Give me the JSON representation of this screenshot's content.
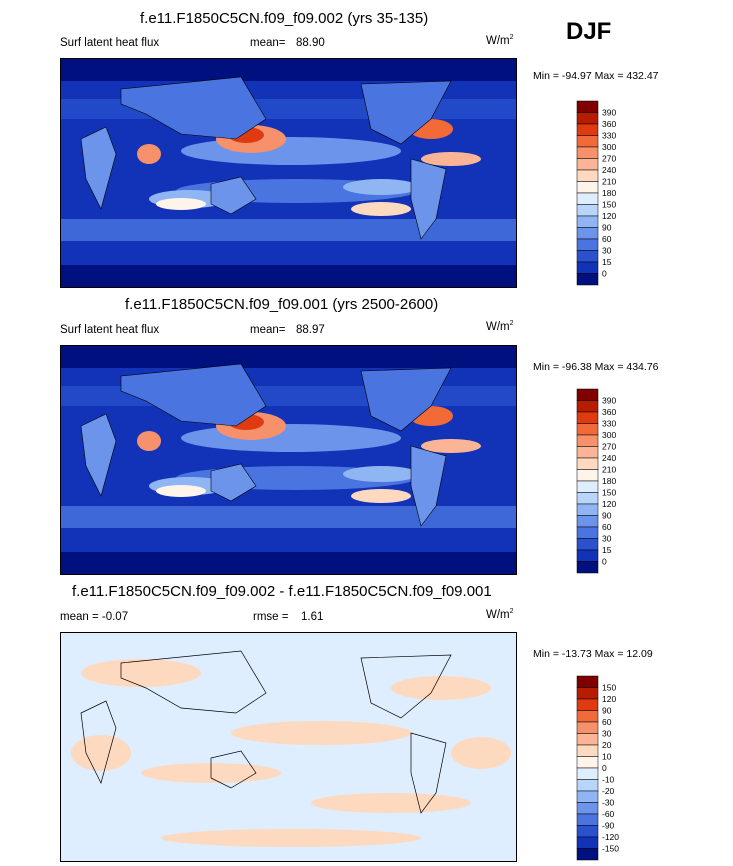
{
  "season": "DJF",
  "panels": [
    {
      "title": "f.e11.F1850C5CN.f09_f09.002 (yrs 35-135)",
      "left_label": "Surf latent heat flux",
      "stat_label": "mean=",
      "stat_value": "88.90",
      "units": "W/m",
      "units_exp": "2",
      "minmax": "Min = -94.97 Max = 432.47"
    },
    {
      "title": "f.e11.F1850C5CN.f09_f09.001 (yrs 2500-2600)",
      "left_label": "Surf latent heat flux",
      "stat_label": "mean=",
      "stat_value": "88.97",
      "units": "W/m",
      "units_exp": "2",
      "minmax": "Min = -96.38 Max = 434.76"
    },
    {
      "title": "f.e11.F1850C5CN.f09_f09.002 - f.e11.F1850C5CN.f09_f09.001",
      "left_label": "mean =  -0.07",
      "stat_label": "rmse =",
      "stat_value": "1.61",
      "units": "W/m",
      "units_exp": "2",
      "minmax": "Min = -13.73 Max =  12.09"
    }
  ],
  "chart_data": [
    {
      "type": "heatmap",
      "title": "f.e11.F1850C5CN.f09_f09.002 (yrs 35-135)",
      "variable": "Surf latent heat flux",
      "units": "W/m2",
      "mean": 88.9,
      "min": -94.97,
      "max": 432.47,
      "colorbar_labels": [
        "390",
        "360",
        "330",
        "300",
        "270",
        "240",
        "210",
        "180",
        "150",
        "120",
        "90",
        "60",
        "30",
        "15",
        "0"
      ],
      "colors": [
        "#800000",
        "#b71c00",
        "#e03a10",
        "#f26a38",
        "#f7916c",
        "#fbb596",
        "#fdd9c0",
        "#fff4ea",
        "#dfeefe",
        "#b8d6fb",
        "#8fb6f3",
        "#6b94ea",
        "#4a74e0",
        "#2a52cf",
        "#1232b8",
        "#00107e"
      ]
    },
    {
      "type": "heatmap",
      "title": "f.e11.F1850C5CN.f09_f09.001 (yrs 2500-2600)",
      "variable": "Surf latent heat flux",
      "units": "W/m2",
      "mean": 88.97,
      "min": -96.38,
      "max": 434.76,
      "colorbar_labels": [
        "390",
        "360",
        "330",
        "300",
        "270",
        "240",
        "210",
        "180",
        "150",
        "120",
        "90",
        "60",
        "30",
        "15",
        "0"
      ],
      "colors": [
        "#800000",
        "#b71c00",
        "#e03a10",
        "#f26a38",
        "#f7916c",
        "#fbb596",
        "#fdd9c0",
        "#fff4ea",
        "#dfeefe",
        "#b8d6fb",
        "#8fb6f3",
        "#6b94ea",
        "#4a74e0",
        "#2a52cf",
        "#1232b8",
        "#00107e"
      ]
    },
    {
      "type": "heatmap",
      "title": "f.e11.F1850C5CN.f09_f09.002 - f.e11.F1850C5CN.f09_f09.001",
      "units": "W/m2",
      "mean": -0.07,
      "rmse": 1.61,
      "min": -13.73,
      "max": 12.09,
      "colorbar_labels": [
        "150",
        "120",
        "90",
        "60",
        "30",
        "20",
        "10",
        "0",
        "-10",
        "-20",
        "-30",
        "-60",
        "-90",
        "-120",
        "-150"
      ],
      "colors": [
        "#800000",
        "#b71c00",
        "#e03a10",
        "#f26a38",
        "#f7916c",
        "#fbb596",
        "#fdd9c0",
        "#fff4ea",
        "#dfeefe",
        "#b8d6fb",
        "#8fb6f3",
        "#6b94ea",
        "#4a74e0",
        "#2a52cf",
        "#1232b8",
        "#00107e"
      ]
    }
  ]
}
